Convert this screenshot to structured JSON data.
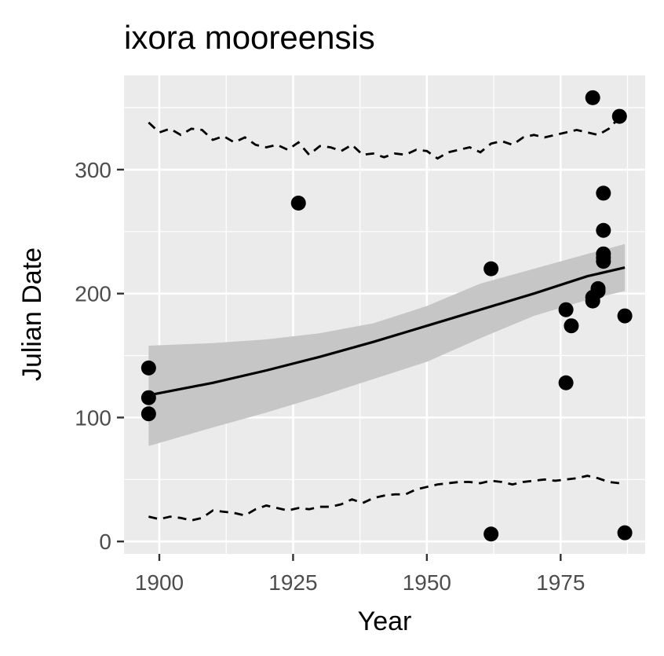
{
  "chart_data": {
    "type": "scatter",
    "title": "ixora mooreensis",
    "xlabel": "Year",
    "ylabel": "Julian Date",
    "xlim": [
      1893.4,
      1990.8
    ],
    "ylim": [
      -10,
      376
    ],
    "xticks": [
      1900,
      1925,
      1950,
      1975
    ],
    "xtick_labels": [
      "1900",
      "1925",
      "1950",
      "1975"
    ],
    "yticks": [
      0,
      100,
      200,
      300
    ],
    "ytick_labels": [
      "0",
      "100",
      "200",
      "300"
    ],
    "grid": true,
    "legend": "none",
    "points": {
      "x": [
        1898,
        1898,
        1898,
        1926,
        1962,
        1962,
        1976,
        1976,
        1977,
        1981,
        1981,
        1981,
        1982,
        1982,
        1983,
        1983,
        1983,
        1983,
        1983,
        1986,
        1987,
        1987
      ],
      "y": [
        140,
        116,
        103,
        273,
        220,
        6,
        187,
        128,
        174,
        358,
        194,
        197,
        202,
        204,
        281,
        251,
        232,
        229,
        226,
        343,
        182,
        7
      ]
    },
    "fit_line": {
      "x": [
        1898,
        1910,
        1920,
        1930,
        1940,
        1950,
        1960,
        1970,
        1980,
        1987
      ],
      "y": [
        118,
        128,
        138,
        149,
        161,
        174,
        187,
        200,
        214,
        221
      ]
    },
    "confidence_band": {
      "x": [
        1898,
        1910,
        1920,
        1930,
        1940,
        1950,
        1960,
        1970,
        1980,
        1987
      ],
      "lower": [
        77,
        92,
        104,
        117,
        131,
        145,
        164,
        182,
        195,
        202
      ],
      "upper": [
        158,
        160,
        163,
        168,
        176,
        190,
        208,
        220,
        232,
        240
      ]
    },
    "upper_dashed": {
      "x": [
        1898,
        1900,
        1902,
        1904,
        1906,
        1908,
        1910,
        1912,
        1914,
        1916,
        1918,
        1920,
        1922,
        1924,
        1926,
        1928,
        1930,
        1932,
        1934,
        1936,
        1938,
        1940,
        1942,
        1944,
        1946,
        1948,
        1950,
        1952,
        1954,
        1956,
        1958,
        1960,
        1962,
        1964,
        1966,
        1968,
        1970,
        1972,
        1974,
        1976,
        1978,
        1980,
        1982,
        1984,
        1986
      ],
      "y": [
        338,
        330,
        333,
        328,
        333,
        332,
        324,
        327,
        322,
        326,
        320,
        318,
        320,
        316,
        322,
        312,
        319,
        318,
        315,
        320,
        312,
        313,
        310,
        313,
        312,
        316,
        315,
        309,
        314,
        316,
        318,
        314,
        321,
        323,
        320,
        326,
        328,
        326,
        328,
        330,
        332,
        330,
        328,
        333,
        342
      ]
    },
    "lower_dashed": {
      "x": [
        1898,
        1900,
        1902,
        1904,
        1906,
        1908,
        1910,
        1912,
        1914,
        1916,
        1918,
        1920,
        1922,
        1924,
        1926,
        1928,
        1930,
        1932,
        1934,
        1936,
        1938,
        1940,
        1942,
        1944,
        1946,
        1948,
        1950,
        1952,
        1954,
        1956,
        1958,
        1960,
        1962,
        1964,
        1966,
        1968,
        1970,
        1972,
        1974,
        1976,
        1978,
        1980,
        1982,
        1984,
        1986
      ],
      "y": [
        20,
        18,
        20,
        19,
        17,
        19,
        25,
        24,
        23,
        21,
        26,
        29,
        27,
        25,
        27,
        26,
        28,
        28,
        30,
        34,
        31,
        35,
        37,
        38,
        38,
        42,
        44,
        46,
        47,
        48,
        48,
        47,
        49,
        48,
        46,
        48,
        49,
        50,
        49,
        50,
        51,
        53,
        51,
        48,
        47
      ]
    }
  }
}
